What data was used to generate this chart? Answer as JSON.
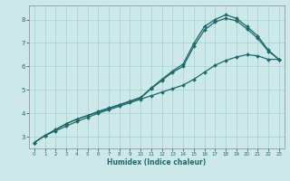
{
  "xlabel": "Humidex (Indice chaleur)",
  "bg_color": "#cce8e8",
  "line_color": "#1a6b6b",
  "grid_color": "#aad4d4",
  "xlim": [
    -0.5,
    23.5
  ],
  "ylim": [
    2.5,
    8.6
  ],
  "xticks": [
    0,
    1,
    2,
    3,
    4,
    5,
    6,
    7,
    8,
    9,
    10,
    11,
    12,
    13,
    14,
    15,
    16,
    17,
    18,
    19,
    20,
    21,
    22,
    23
  ],
  "yticks": [
    3,
    4,
    5,
    6,
    7,
    8
  ],
  "line1_x": [
    0,
    1,
    2,
    3,
    4,
    5,
    6,
    7,
    8,
    9,
    10,
    11,
    12,
    13,
    14,
    15,
    16,
    17,
    18,
    19,
    20,
    21,
    22,
    23
  ],
  "line1_y": [
    2.75,
    3.05,
    3.25,
    3.45,
    3.65,
    3.82,
    4.0,
    4.15,
    4.3,
    4.45,
    4.6,
    4.75,
    4.9,
    5.05,
    5.2,
    5.45,
    5.75,
    6.05,
    6.25,
    6.4,
    6.5,
    6.45,
    6.3,
    6.3
  ],
  "line2_x": [
    0,
    1,
    2,
    3,
    4,
    5,
    6,
    7,
    8,
    9,
    10,
    11,
    12,
    13,
    14,
    15,
    16,
    17,
    18,
    19,
    20,
    21,
    22,
    23
  ],
  "line2_y": [
    2.75,
    3.05,
    3.3,
    3.55,
    3.75,
    3.9,
    4.05,
    4.2,
    4.35,
    4.5,
    4.65,
    5.05,
    5.4,
    5.75,
    6.0,
    6.85,
    7.55,
    7.9,
    8.05,
    7.95,
    7.6,
    7.2,
    6.65,
    6.3
  ],
  "line3_x": [
    0,
    1,
    2,
    3,
    4,
    5,
    6,
    7,
    8,
    9,
    10,
    11,
    12,
    13,
    14,
    15,
    16,
    17,
    18,
    19,
    20,
    21,
    22,
    23
  ],
  "line3_y": [
    2.75,
    3.05,
    3.3,
    3.55,
    3.75,
    3.9,
    4.08,
    4.22,
    4.37,
    4.52,
    4.68,
    5.08,
    5.45,
    5.8,
    6.1,
    6.98,
    7.7,
    8.0,
    8.2,
    8.05,
    7.7,
    7.3,
    6.7,
    6.3
  ]
}
